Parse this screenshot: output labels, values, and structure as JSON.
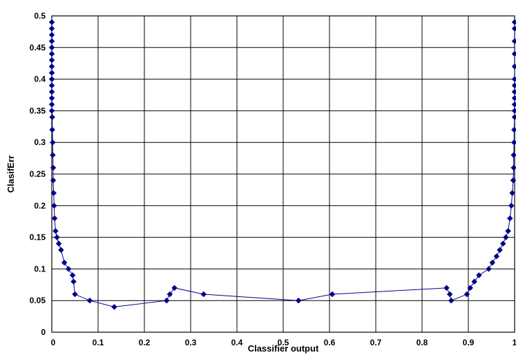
{
  "chart_data": {
    "type": "line",
    "title": "",
    "xlabel": "Classifier output",
    "ylabel": "ClasifErr",
    "xlim": [
      0,
      1
    ],
    "ylim": [
      0,
      0.5
    ],
    "xticks": [
      "0",
      "0.1",
      "0.2",
      "0.3",
      "0.4",
      "0.5",
      "0.6",
      "0.7",
      "0.8",
      "0.9",
      "1"
    ],
    "yticks": [
      "0",
      "0.05",
      "0.1",
      "0.15",
      "0.2",
      "0.25",
      "0.3",
      "0.35",
      "0.4",
      "0.45",
      "0.5"
    ],
    "grid": true,
    "legend": "none",
    "series_color": "#00008B",
    "marker": "diamond",
    "series": [
      {
        "x": [
          0.0,
          0.0,
          0.0,
          0.0,
          0.0,
          0.0,
          0.0,
          0.0,
          0.0,
          0.0,
          0.0,
          0.0,
          0.0,
          0.0,
          0.0,
          0.001,
          0.001,
          0.002,
          0.002,
          0.003,
          0.003,
          0.004,
          0.005,
          0.006,
          0.008,
          0.011,
          0.015,
          0.02,
          0.027,
          0.036,
          0.045,
          0.047,
          0.05,
          0.082,
          0.135,
          0.248,
          0.255,
          0.265,
          0.328,
          0.533,
          0.606,
          0.853,
          0.86,
          0.863,
          0.897,
          0.904,
          0.913,
          0.923,
          0.944,
          0.952,
          0.961,
          0.968,
          0.975,
          0.981,
          0.986,
          0.99,
          0.993,
          0.995,
          0.997,
          0.998,
          0.998,
          0.999,
          0.999,
          1.0,
          1.0,
          1.0,
          1.0,
          1.0,
          1.0,
          1.0,
          1.0,
          1.0,
          1.0,
          1.0,
          1.0
        ],
        "y": [
          0.49,
          0.48,
          0.47,
          0.46,
          0.45,
          0.44,
          0.43,
          0.42,
          0.41,
          0.4,
          0.39,
          0.38,
          0.37,
          0.36,
          0.35,
          0.34,
          0.32,
          0.3,
          0.28,
          0.26,
          0.24,
          0.22,
          0.2,
          0.18,
          0.16,
          0.15,
          0.14,
          0.13,
          0.11,
          0.1,
          0.09,
          0.08,
          0.06,
          0.05,
          0.04,
          0.05,
          0.06,
          0.07,
          0.06,
          0.05,
          0.06,
          0.07,
          0.06,
          0.05,
          0.06,
          0.07,
          0.08,
          0.09,
          0.1,
          0.11,
          0.12,
          0.13,
          0.14,
          0.15,
          0.16,
          0.18,
          0.2,
          0.22,
          0.24,
          0.26,
          0.28,
          0.3,
          0.32,
          0.34,
          0.35,
          0.36,
          0.37,
          0.38,
          0.39,
          0.4,
          0.42,
          0.44,
          0.46,
          0.48,
          0.49
        ]
      }
    ]
  }
}
